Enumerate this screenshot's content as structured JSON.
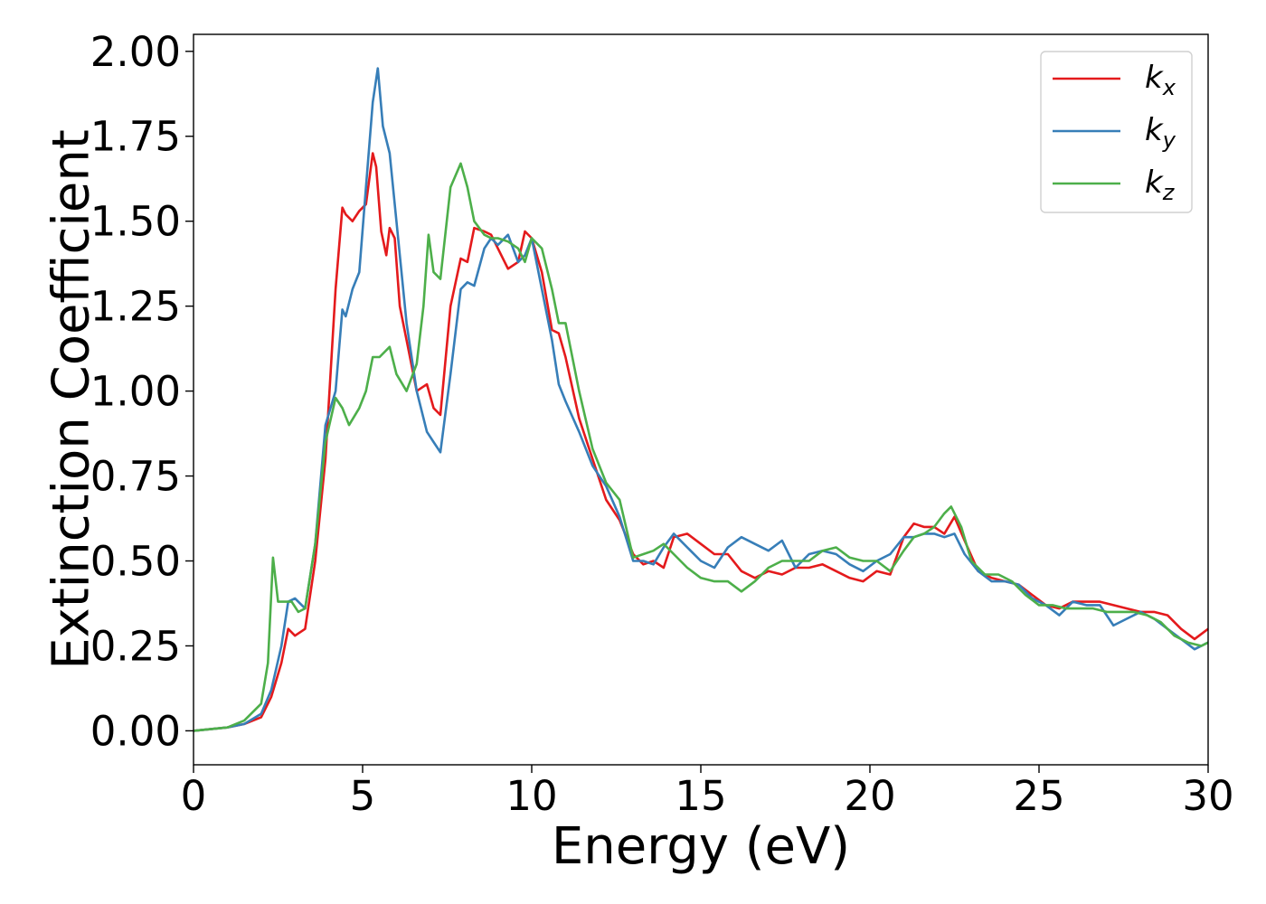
{
  "chart_data": {
    "type": "line",
    "xlabel": "Energy (eV)",
    "ylabel": "Extinction Coefficient",
    "xlim": [
      0,
      30
    ],
    "ylim": [
      -0.1,
      2.05
    ],
    "xticks": [
      0,
      5,
      10,
      15,
      20,
      25,
      30
    ],
    "xtick_labels": [
      "0",
      "5",
      "10",
      "15",
      "20",
      "25",
      "30"
    ],
    "yticks": [
      0,
      0.25,
      0.5,
      0.75,
      1.0,
      1.25,
      1.5,
      1.75,
      2.0
    ],
    "ytick_labels": [
      "0.00",
      "0.25",
      "0.50",
      "0.75",
      "1.00",
      "1.25",
      "1.50",
      "1.75",
      "2.00"
    ],
    "grid": false,
    "legend_position": "top-right",
    "series": [
      {
        "name": "k_x",
        "label_main": "k",
        "label_sub": "x",
        "color": "#e41a1c",
        "x": [
          0,
          1,
          1.5,
          2,
          2.3,
          2.6,
          2.8,
          3.0,
          3.3,
          3.6,
          3.9,
          4.2,
          4.4,
          4.5,
          4.7,
          4.9,
          5.1,
          5.3,
          5.4,
          5.55,
          5.7,
          5.8,
          5.95,
          6.1,
          6.3,
          6.6,
          6.9,
          7.1,
          7.3,
          7.6,
          7.9,
          8.1,
          8.3,
          8.6,
          8.8,
          9.0,
          9.3,
          9.6,
          9.8,
          10.0,
          10.3,
          10.6,
          10.8,
          11.0,
          11.4,
          11.8,
          12.2,
          12.6,
          13.0,
          13.3,
          13.6,
          13.9,
          14.2,
          14.6,
          15.0,
          15.4,
          15.8,
          16.2,
          16.6,
          17.0,
          17.4,
          17.8,
          18.2,
          18.6,
          19.0,
          19.4,
          19.8,
          20.2,
          20.6,
          21.0,
          21.3,
          21.6,
          21.9,
          22.2,
          22.5,
          22.8,
          23.2,
          23.6,
          24.0,
          24.4,
          24.8,
          25.2,
          25.6,
          26.0,
          26.4,
          26.8,
          27.2,
          27.6,
          28.0,
          28.4,
          28.8,
          29.2,
          29.6,
          30.0
        ],
        "y": [
          0,
          0.01,
          0.02,
          0.04,
          0.1,
          0.2,
          0.3,
          0.28,
          0.3,
          0.5,
          0.8,
          1.3,
          1.54,
          1.52,
          1.5,
          1.53,
          1.55,
          1.7,
          1.66,
          1.47,
          1.4,
          1.48,
          1.45,
          1.25,
          1.15,
          1.0,
          1.02,
          0.95,
          0.93,
          1.25,
          1.39,
          1.38,
          1.48,
          1.47,
          1.46,
          1.42,
          1.36,
          1.38,
          1.47,
          1.45,
          1.35,
          1.18,
          1.17,
          1.1,
          0.92,
          0.8,
          0.68,
          0.62,
          0.52,
          0.49,
          0.5,
          0.48,
          0.57,
          0.58,
          0.55,
          0.52,
          0.52,
          0.47,
          0.45,
          0.47,
          0.46,
          0.48,
          0.48,
          0.49,
          0.47,
          0.45,
          0.44,
          0.47,
          0.46,
          0.57,
          0.61,
          0.6,
          0.6,
          0.58,
          0.63,
          0.56,
          0.47,
          0.45,
          0.44,
          0.43,
          0.4,
          0.37,
          0.36,
          0.38,
          0.38,
          0.38,
          0.37,
          0.36,
          0.35,
          0.35,
          0.34,
          0.3,
          0.27,
          0.3
        ]
      },
      {
        "name": "k_y",
        "label_main": "k",
        "label_sub": "y",
        "color": "#377eb8",
        "x": [
          0,
          1,
          1.5,
          2,
          2.3,
          2.6,
          2.8,
          3.0,
          3.3,
          3.6,
          3.9,
          4.2,
          4.4,
          4.5,
          4.7,
          4.9,
          5.1,
          5.3,
          5.45,
          5.6,
          5.8,
          6.0,
          6.3,
          6.6,
          6.9,
          7.1,
          7.3,
          7.6,
          7.9,
          8.1,
          8.3,
          8.6,
          8.8,
          9.0,
          9.3,
          9.6,
          9.8,
          10.0,
          10.3,
          10.6,
          10.8,
          11.0,
          11.4,
          11.8,
          12.2,
          12.6,
          13.0,
          13.3,
          13.6,
          13.9,
          14.2,
          14.6,
          15.0,
          15.4,
          15.8,
          16.2,
          16.6,
          17.0,
          17.4,
          17.8,
          18.2,
          18.6,
          19.0,
          19.4,
          19.8,
          20.2,
          20.6,
          21.0,
          21.3,
          21.6,
          21.9,
          22.2,
          22.5,
          22.8,
          23.2,
          23.6,
          24.0,
          24.4,
          24.8,
          25.2,
          25.6,
          26.0,
          26.4,
          26.8,
          27.2,
          27.6,
          28.0,
          28.4,
          28.8,
          29.2,
          29.6,
          30.0
        ],
        "y": [
          0,
          0.01,
          0.02,
          0.05,
          0.12,
          0.25,
          0.38,
          0.39,
          0.36,
          0.55,
          0.9,
          1.0,
          1.24,
          1.22,
          1.3,
          1.35,
          1.6,
          1.85,
          1.95,
          1.78,
          1.7,
          1.5,
          1.2,
          1.0,
          0.88,
          0.85,
          0.82,
          1.05,
          1.3,
          1.32,
          1.31,
          1.42,
          1.45,
          1.43,
          1.46,
          1.38,
          1.4,
          1.45,
          1.3,
          1.15,
          1.02,
          0.97,
          0.88,
          0.78,
          0.72,
          0.63,
          0.5,
          0.5,
          0.49,
          0.54,
          0.58,
          0.54,
          0.5,
          0.48,
          0.54,
          0.57,
          0.55,
          0.53,
          0.56,
          0.48,
          0.52,
          0.53,
          0.52,
          0.49,
          0.47,
          0.5,
          0.52,
          0.57,
          0.57,
          0.58,
          0.58,
          0.57,
          0.58,
          0.52,
          0.47,
          0.44,
          0.44,
          0.43,
          0.39,
          0.37,
          0.34,
          0.38,
          0.37,
          0.37,
          0.31,
          0.33,
          0.35,
          0.33,
          0.3,
          0.27,
          0.24,
          0.26
        ]
      },
      {
        "name": "k_z",
        "label_main": "k",
        "label_sub": "z",
        "color": "#4daf4a",
        "x": [
          0,
          1,
          1.5,
          2,
          2.2,
          2.35,
          2.5,
          2.7,
          2.9,
          3.1,
          3.3,
          3.6,
          3.9,
          4.2,
          4.4,
          4.6,
          4.9,
          5.1,
          5.3,
          5.5,
          5.8,
          6.0,
          6.3,
          6.6,
          6.8,
          6.95,
          7.1,
          7.3,
          7.6,
          7.9,
          8.1,
          8.3,
          8.6,
          8.8,
          9.0,
          9.3,
          9.6,
          9.8,
          10.0,
          10.3,
          10.6,
          10.8,
          11.0,
          11.4,
          11.8,
          12.2,
          12.6,
          13.0,
          13.3,
          13.6,
          13.9,
          14.2,
          14.6,
          15.0,
          15.4,
          15.8,
          16.2,
          16.6,
          17.0,
          17.4,
          17.8,
          18.2,
          18.6,
          19.0,
          19.4,
          19.8,
          20.2,
          20.6,
          21.0,
          21.3,
          21.6,
          21.9,
          22.2,
          22.4,
          22.7,
          23.0,
          23.4,
          23.8,
          24.2,
          24.6,
          25.0,
          25.4,
          25.8,
          26.2,
          26.6,
          27.0,
          27.4,
          27.8,
          28.2,
          28.6,
          29.0,
          29.4,
          29.8,
          30.0
        ],
        "y": [
          0,
          0.01,
          0.03,
          0.08,
          0.2,
          0.51,
          0.38,
          0.38,
          0.38,
          0.35,
          0.36,
          0.55,
          0.85,
          0.98,
          0.95,
          0.9,
          0.95,
          1.0,
          1.1,
          1.1,
          1.13,
          1.05,
          1.0,
          1.08,
          1.25,
          1.46,
          1.35,
          1.33,
          1.6,
          1.67,
          1.6,
          1.5,
          1.46,
          1.45,
          1.45,
          1.44,
          1.42,
          1.38,
          1.45,
          1.42,
          1.3,
          1.2,
          1.2,
          1.0,
          0.83,
          0.73,
          0.68,
          0.51,
          0.52,
          0.53,
          0.55,
          0.52,
          0.48,
          0.45,
          0.44,
          0.44,
          0.41,
          0.44,
          0.48,
          0.5,
          0.5,
          0.5,
          0.53,
          0.54,
          0.51,
          0.5,
          0.5,
          0.47,
          0.53,
          0.57,
          0.58,
          0.6,
          0.64,
          0.66,
          0.6,
          0.5,
          0.46,
          0.46,
          0.44,
          0.4,
          0.37,
          0.37,
          0.36,
          0.36,
          0.36,
          0.35,
          0.35,
          0.35,
          0.34,
          0.32,
          0.28,
          0.26,
          0.25,
          0.26
        ]
      }
    ]
  }
}
